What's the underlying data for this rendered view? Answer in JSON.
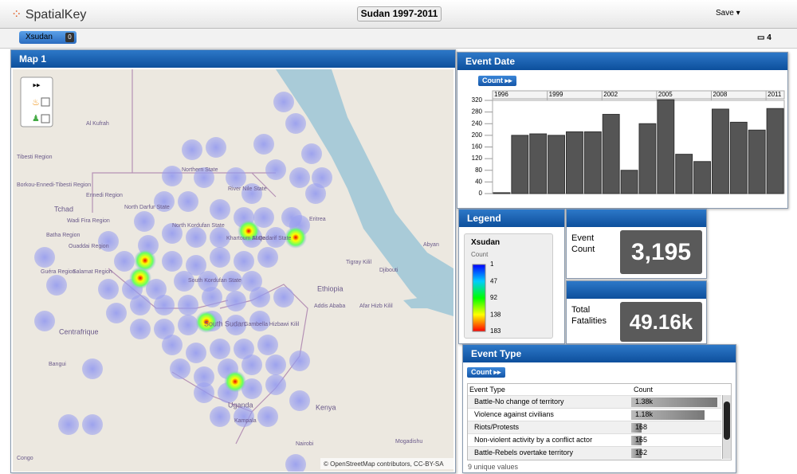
{
  "header": {
    "logo": "SpatialKey",
    "title": "Sudan 1997-2011",
    "save": "Save"
  },
  "toolbar": {
    "filter": "Xsudan",
    "filter_count": "0",
    "panel_count": "4"
  },
  "map": {
    "title": "Map 1",
    "attribution": "© OpenStreetMap contributors, CC-BY-SA",
    "labels": [
      "Al Kufrah",
      "Tibesti Region",
      "Borkou-Ennedi-Tibesti Region",
      "Ennedi Region",
      "Tchad",
      "Wadi Fira Region",
      "Batha Region",
      "Ouaddai Region",
      "Guéra Region",
      "Salamat Region",
      "Northern State",
      "River Nile State",
      "North Darfur State",
      "North Kordufan State",
      "Khartoum State",
      "Al Qadarif State",
      "South Kordufan State",
      "South Sudan",
      "Gambella Hizbawi Kilil",
      "Ethiopia",
      "Addis Ababa",
      "Afar Hizb Kilil",
      "Tigray Kilil",
      "Eritrea",
      "Djibouti",
      "Abyan",
      "Centrafrique",
      "Bangui",
      "Uganda",
      "Kampala",
      "Kenya",
      "Nairobi",
      "Mogadishu",
      "Congo"
    ]
  },
  "chart_data": {
    "type": "bar",
    "title": "Event Date",
    "button": "Count",
    "categories": [
      "1996",
      null,
      null,
      "1999",
      null,
      null,
      "2002",
      null,
      null,
      "2005",
      null,
      null,
      "2008",
      null,
      null,
      "2011"
    ],
    "values": [
      3,
      200,
      205,
      200,
      212,
      212,
      272,
      80,
      240,
      322,
      135,
      110,
      290,
      245,
      218,
      292
    ],
    "color": "#555555",
    "ylim": [
      0,
      320
    ],
    "yticks": [
      0,
      40,
      80,
      120,
      160,
      200,
      240,
      280,
      320
    ],
    "grid": true
  },
  "legend": {
    "title": "Legend",
    "layer": "Xsudan",
    "measure": "Count",
    "ticks": [
      1,
      47,
      92,
      138,
      183
    ]
  },
  "event_count": {
    "label": "Event Count",
    "value": "3,195"
  },
  "fatalities": {
    "label": "Total Fatalities",
    "value": "49.16k"
  },
  "event_type": {
    "title": "Event Type",
    "button": "Count",
    "columns": [
      "Event Type",
      "Count"
    ],
    "rows": [
      "Battle-No change of territory",
      "Violence against civilians",
      "Riots/Protests",
      "Non-violent activity by a conflict actor",
      "Battle-Rebels overtake territory"
    ],
    "values": [
      1380,
      1180,
      168,
      165,
      162
    ],
    "value_labels": [
      "1.38k",
      "1.18k",
      "168",
      "165",
      "162"
    ],
    "footer": "9 unique values"
  }
}
